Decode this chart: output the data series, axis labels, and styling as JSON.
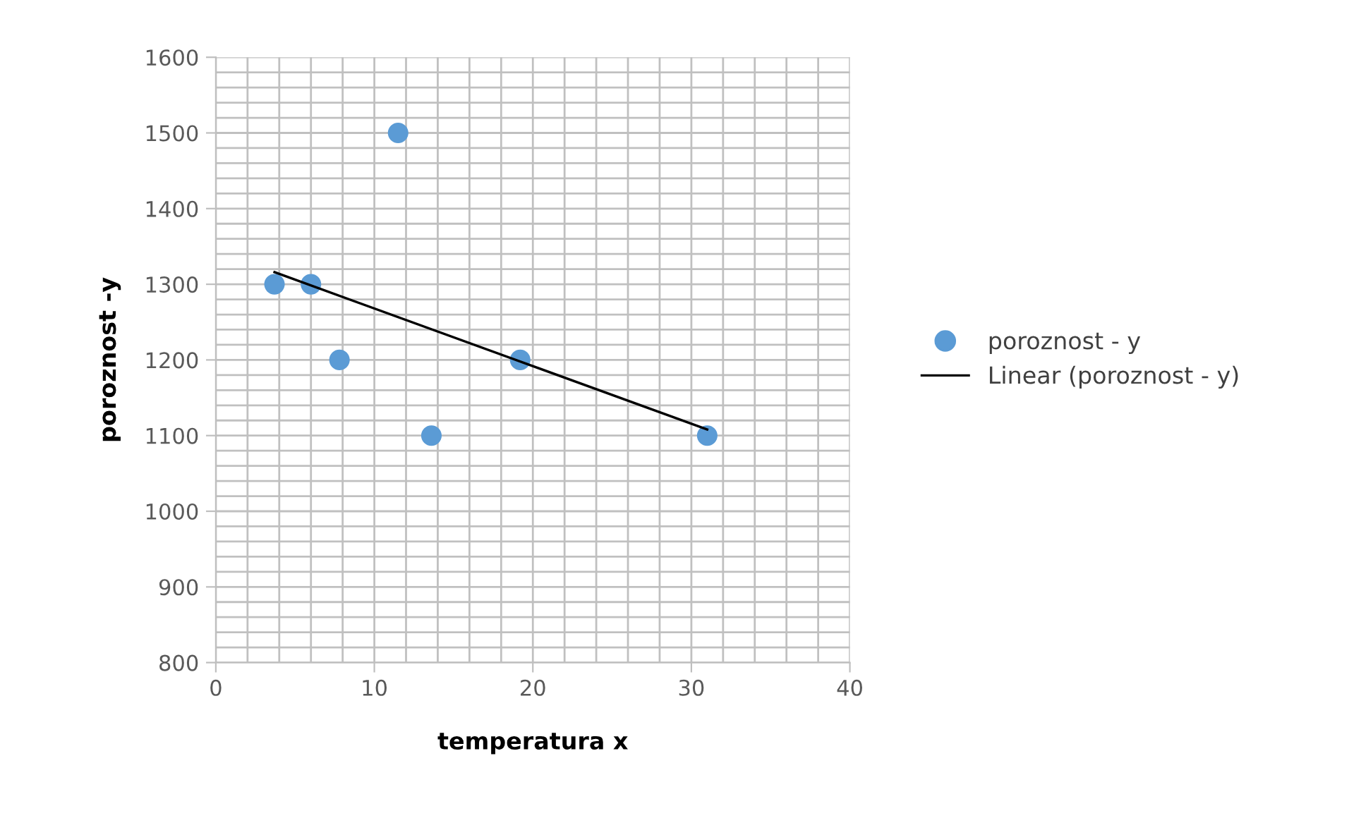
{
  "chart_data": {
    "type": "scatter",
    "xlabel": "temperatura x",
    "ylabel": "poroznost -y",
    "series": [
      {
        "name": "poroznost - y",
        "color": "#5b9bd5",
        "marker": "circle",
        "x": [
          3.7,
          6.0,
          7.8,
          11.5,
          13.6,
          19.2,
          31.0
        ],
        "values": [
          1300,
          1300,
          1200,
          1500,
          1100,
          1200,
          1100
        ]
      },
      {
        "name": "Linear (poroznost - y)",
        "type": "line",
        "color": "#000000",
        "line_style": "solid",
        "marker": "none",
        "x": [
          3.7,
          31.0
        ],
        "values": [
          1316,
          1108
        ]
      }
    ],
    "xlim": [
      0,
      40
    ],
    "ylim": [
      800,
      1600
    ],
    "xticks": [
      0,
      10,
      20,
      30,
      40
    ],
    "yticks": [
      800,
      900,
      1000,
      1100,
      1200,
      1300,
      1400,
      1500,
      1600
    ],
    "grid": true,
    "legend": "right"
  }
}
